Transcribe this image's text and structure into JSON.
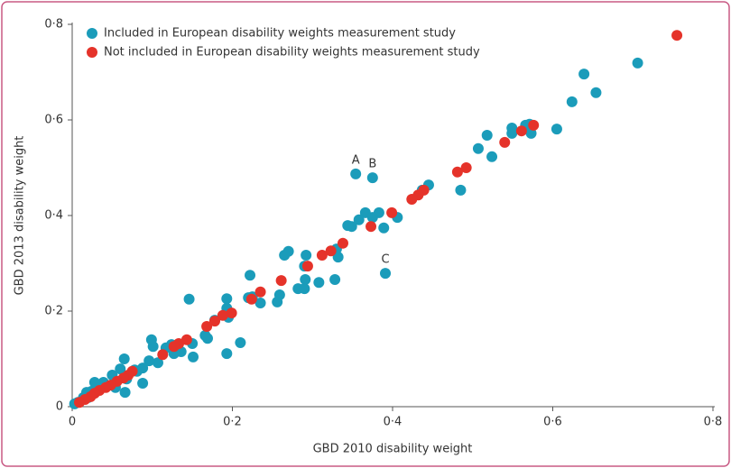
{
  "chart_data": {
    "type": "scatter",
    "xlabel": "GBD 2010 disability weight",
    "ylabel": "GBD 2013 disability weight",
    "xlim": [
      0,
      0.8
    ],
    "ylim": [
      0,
      0.8
    ],
    "xticks": [
      0,
      {
        "value": 0.2,
        "label": "0·2"
      },
      {
        "value": 0.4,
        "label": "0·4"
      },
      {
        "value": 0.6,
        "label": "0·6"
      },
      {
        "value": 0.8,
        "label": "0·8"
      }
    ],
    "yticks": [
      0,
      {
        "value": 0.2,
        "label": "0·2"
      },
      {
        "value": 0.4,
        "label": "0·4"
      },
      {
        "value": 0.6,
        "label": "0·6"
      },
      {
        "value": 0.8,
        "label": "0·8"
      }
    ],
    "legend_position": "upper left",
    "series": [
      {
        "name": "Included in European disability weights measurement study",
        "color": "#1b9cba",
        "x": [
          0.706,
          0.639,
          0.654,
          0.624,
          0.605,
          0.571,
          0.573,
          0.566,
          0.549,
          0.549,
          0.518,
          0.507,
          0.524,
          0.485,
          0.445,
          0.437,
          0.354,
          0.375,
          0.391,
          0.406,
          0.383,
          0.366,
          0.358,
          0.349,
          0.344,
          0.389,
          0.375,
          0.332,
          0.33,
          0.328,
          0.308,
          0.291,
          0.292,
          0.29,
          0.282,
          0.29,
          0.27,
          0.265,
          0.259,
          0.256,
          0.235,
          0.222,
          0.225,
          0.22,
          0.21,
          0.193,
          0.195,
          0.193,
          0.193,
          0.15,
          0.146,
          0.151,
          0.169,
          0.178,
          0.166,
          0.136,
          0.127,
          0.124,
          0.117,
          0.107,
          0.101,
          0.099,
          0.088,
          0.081,
          0.078,
          0.068,
          0.065,
          0.066,
          0.06,
          0.054,
          0.05,
          0.039,
          0.032,
          0.028,
          0.024,
          0.018,
          0.014,
          0.007,
          0.003,
          0.088,
          0.096,
          0.02
        ],
        "values": [
          0.719,
          0.696,
          0.657,
          0.638,
          0.581,
          0.591,
          0.572,
          0.589,
          0.583,
          0.572,
          0.568,
          0.54,
          0.523,
          0.453,
          0.464,
          0.453,
          0.487,
          0.479,
          0.279,
          0.396,
          0.406,
          0.406,
          0.391,
          0.377,
          0.379,
          0.374,
          0.396,
          0.313,
          0.33,
          0.266,
          0.26,
          0.266,
          0.317,
          0.294,
          0.247,
          0.247,
          0.325,
          0.317,
          0.234,
          0.219,
          0.217,
          0.275,
          0.23,
          0.228,
          0.134,
          0.206,
          0.187,
          0.226,
          0.111,
          0.132,
          0.225,
          0.104,
          0.143,
          0.181,
          0.149,
          0.115,
          0.111,
          0.13,
          0.123,
          0.092,
          0.126,
          0.14,
          0.049,
          0.074,
          0.077,
          0.058,
          0.1,
          0.03,
          0.079,
          0.04,
          0.066,
          0.051,
          0.045,
          0.051,
          0.032,
          0.03,
          0.019,
          0.009,
          0.006,
          0.081,
          0.096,
          0.019
        ]
      },
      {
        "name": "Not included in European disability weights measurement study",
        "color": "#e5332a",
        "x": [
          0.755,
          0.576,
          0.561,
          0.54,
          0.492,
          0.481,
          0.439,
          0.432,
          0.424,
          0.399,
          0.373,
          0.338,
          0.323,
          0.312,
          0.294,
          0.261,
          0.235,
          0.224,
          0.199,
          0.188,
          0.178,
          0.168,
          0.143,
          0.133,
          0.127,
          0.113,
          0.075,
          0.07,
          0.064,
          0.056,
          0.048,
          0.042,
          0.034,
          0.028,
          0.023,
          0.016,
          0.009
        ],
        "values": [
          0.777,
          0.589,
          0.577,
          0.553,
          0.5,
          0.491,
          0.453,
          0.443,
          0.434,
          0.406,
          0.377,
          0.342,
          0.326,
          0.317,
          0.294,
          0.264,
          0.24,
          0.225,
          0.196,
          0.191,
          0.179,
          0.168,
          0.14,
          0.132,
          0.126,
          0.109,
          0.074,
          0.066,
          0.06,
          0.053,
          0.045,
          0.04,
          0.034,
          0.028,
          0.021,
          0.015,
          0.009
        ]
      }
    ],
    "annotations": [
      {
        "text": "A",
        "x": 0.354,
        "y": 0.487
      },
      {
        "text": "B",
        "x": 0.375,
        "y": 0.479
      },
      {
        "text": "C",
        "x": 0.391,
        "y": 0.279
      }
    ]
  }
}
